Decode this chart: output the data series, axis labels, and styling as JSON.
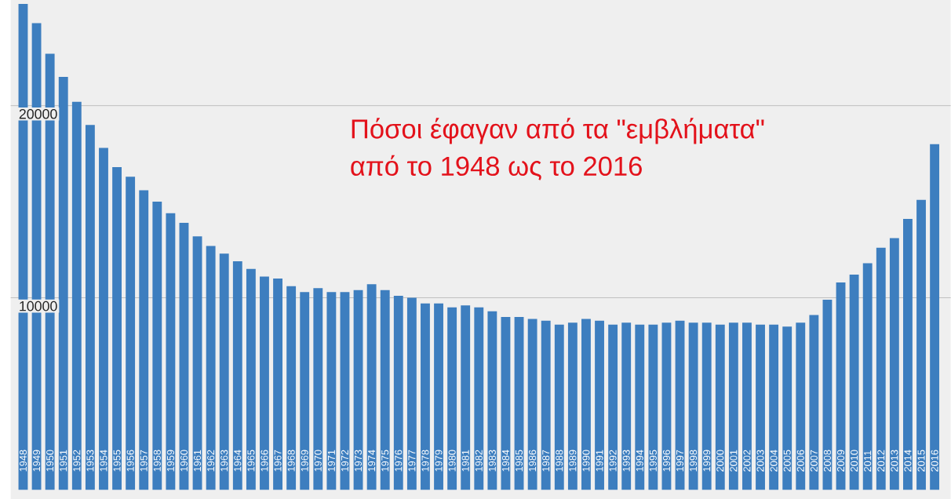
{
  "chart_data": {
    "type": "bar",
    "title": "Πόσοι έφαγαν από τα \"εμβλήματα\"",
    "subtitle": "από το 1948 ως το 2016",
    "categories": [
      "1948",
      "1949",
      "1950",
      "1951",
      "1952",
      "1953",
      "1954",
      "1955",
      "1956",
      "1957",
      "1958",
      "1959",
      "1960",
      "1961",
      "1962",
      "1963",
      "1964",
      "1965",
      "1966",
      "1967",
      "1968",
      "1969",
      "1970",
      "1971",
      "1972",
      "1973",
      "1974",
      "1975",
      "1976",
      "1977",
      "1978",
      "1979",
      "1980",
      "1981",
      "1982",
      "1983",
      "1984",
      "1985",
      "1986",
      "1987",
      "1988",
      "1989",
      "1990",
      "1991",
      "1992",
      "1993",
      "1994",
      "1995",
      "1996",
      "1997",
      "1998",
      "1999",
      "2000",
      "2001",
      "2002",
      "2003",
      "2004",
      "2005",
      "2006",
      "2007",
      "2008",
      "2009",
      "2010",
      "2011",
      "2012",
      "2013",
      "2014",
      "2015",
      "2016"
    ],
    "values": [
      25300,
      24300,
      22700,
      21500,
      20200,
      19000,
      17800,
      16800,
      16300,
      15600,
      15000,
      14400,
      13900,
      13200,
      12700,
      12300,
      11900,
      11500,
      11100,
      11000,
      10600,
      10300,
      10500,
      10300,
      10300,
      10400,
      10700,
      10400,
      10100,
      10000,
      9700,
      9700,
      9500,
      9600,
      9500,
      9300,
      9000,
      9000,
      8900,
      8800,
      8600,
      8700,
      8900,
      8800,
      8600,
      8700,
      8600,
      8600,
      8700,
      8800,
      8700,
      8700,
      8600,
      8700,
      8700,
      8600,
      8600,
      8500,
      8700,
      9100,
      9900,
      10800,
      11200,
      11800,
      12600,
      13100,
      14100,
      15100,
      18000
    ],
    "color": "#3d7ebf",
    "ylim": [
      -500,
      25500
    ],
    "yticks": [
      10000,
      20000
    ],
    "grid": "y"
  }
}
